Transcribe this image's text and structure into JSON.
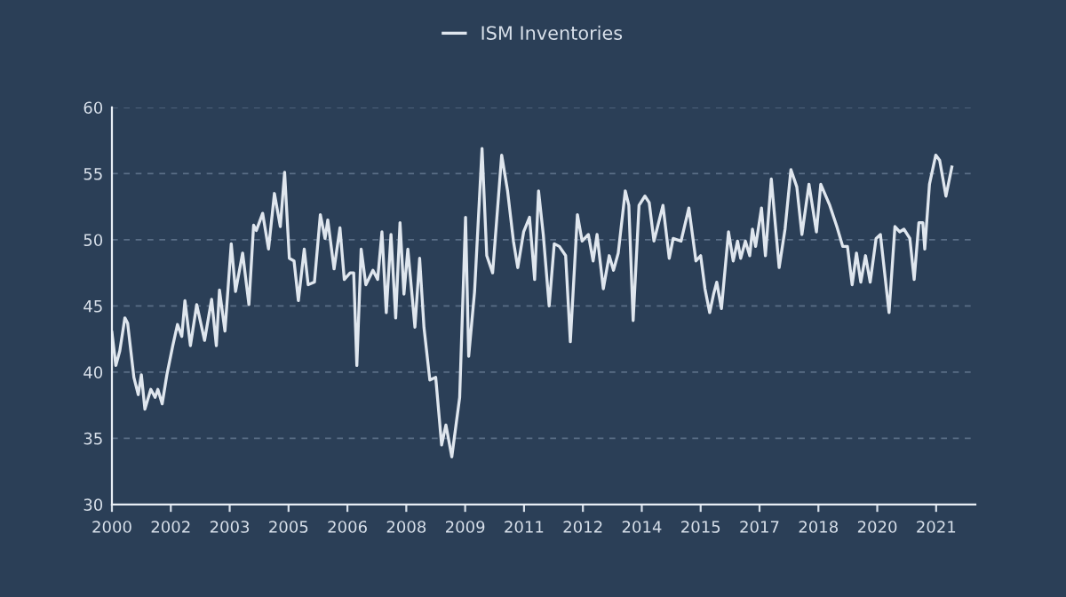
{
  "chart_data": {
    "type": "line",
    "x": [
      2000.0,
      2000.1,
      2000.2,
      2000.33,
      2000.4,
      2000.56,
      2000.67,
      2000.75,
      2000.84,
      2000.99,
      2001.1,
      2001.17,
      2001.28,
      2001.4,
      2001.55,
      2001.67,
      2001.78,
      2001.86,
      2002.0,
      2002.16,
      2002.36,
      2002.54,
      2002.66,
      2002.74,
      2002.88,
      2003.04,
      2003.15,
      2003.33,
      2003.49,
      2003.61,
      2003.68,
      2003.84,
      2003.99,
      2004.14,
      2004.29,
      2004.4,
      2004.52,
      2004.64,
      2004.75,
      2004.9,
      2005.0,
      2005.16,
      2005.31,
      2005.43,
      2005.5,
      2005.66,
      2005.81,
      2005.92,
      2006.07,
      2006.16,
      2006.24,
      2006.35,
      2006.47,
      2006.65,
      2006.77,
      2006.88,
      2006.99,
      2007.11,
      2007.23,
      2007.34,
      2007.44,
      2007.54,
      2007.72,
      2007.84,
      2007.95,
      2008.1,
      2008.25,
      2008.4,
      2008.51,
      2008.66,
      2008.86,
      2009.01,
      2009.09,
      2009.24,
      2009.43,
      2009.55,
      2009.7,
      2009.93,
      2010.08,
      2010.23,
      2010.34,
      2010.49,
      2010.64,
      2010.77,
      2010.87,
      2010.99,
      2011.14,
      2011.27,
      2011.4,
      2011.56,
      2011.68,
      2011.86,
      2011.98,
      2012.14,
      2012.26,
      2012.36,
      2012.52,
      2012.67,
      2012.78,
      2012.9,
      2013.08,
      2013.17,
      2013.28,
      2013.43,
      2013.58,
      2013.69,
      2013.81,
      2014.04,
      2014.2,
      2014.3,
      2014.5,
      2014.7,
      2014.88,
      2015.0,
      2015.11,
      2015.23,
      2015.33,
      2015.41,
      2015.53,
      2015.71,
      2015.83,
      2015.94,
      2016.02,
      2016.14,
      2016.25,
      2016.32,
      2016.4,
      2016.55,
      2016.65,
      2016.8,
      2017.0,
      2017.15,
      2017.3,
      2017.45,
      2017.58,
      2017.76,
      2017.95,
      2018.06,
      2018.29,
      2018.47,
      2018.62,
      2018.74,
      2018.86,
      2018.97,
      2019.08,
      2019.2,
      2019.32,
      2019.47,
      2019.58,
      2019.8,
      2019.95,
      2020.07,
      2020.18,
      2020.33,
      2020.44,
      2020.56,
      2020.66,
      2020.71,
      2020.83,
      2020.99,
      2021.09,
      2021.25,
      2021.4
    ],
    "series": [
      {
        "name": "ISM Inventories",
        "color": "#dfe6ee",
        "values": [
          43.0,
          40.5,
          41.6,
          44.1,
          43.7,
          39.6,
          38.3,
          39.8,
          37.2,
          38.7,
          38.1,
          38.7,
          37.6,
          39.8,
          42.0,
          43.6,
          42.7,
          45.4,
          42.0,
          45.1,
          42.4,
          45.5,
          42.0,
          46.2,
          43.1,
          49.7,
          46.1,
          49.0,
          45.1,
          51.1,
          50.7,
          52.0,
          49.3,
          53.5,
          51.0,
          55.1,
          48.6,
          48.4,
          45.4,
          49.3,
          46.6,
          46.8,
          51.9,
          50.1,
          51.5,
          47.8,
          50.9,
          47.0,
          47.5,
          47.5,
          40.5,
          49.3,
          46.6,
          47.7,
          47.0,
          50.6,
          44.5,
          50.4,
          44.1,
          51.3,
          45.9,
          49.3,
          43.4,
          48.6,
          43.4,
          39.4,
          39.6,
          34.5,
          36.0,
          33.6,
          38.1,
          51.7,
          41.2,
          46.1,
          56.9,
          48.8,
          47.5,
          56.4,
          53.7,
          49.9,
          47.9,
          50.6,
          51.7,
          47.0,
          53.7,
          50.4,
          45.0,
          49.7,
          49.5,
          48.8,
          42.3,
          51.9,
          49.9,
          50.4,
          48.4,
          50.4,
          46.3,
          48.8,
          47.7,
          49.0,
          53.7,
          52.6,
          43.9,
          52.6,
          53.3,
          52.8,
          49.9,
          52.6,
          48.6,
          50.1,
          49.9,
          52.4,
          48.4,
          48.8,
          46.3,
          44.5,
          45.9,
          46.8,
          44.8,
          50.6,
          48.4,
          49.9,
          48.6,
          49.9,
          48.8,
          50.8,
          49.5,
          52.4,
          48.8,
          54.6,
          47.9,
          50.8,
          55.3,
          54.0,
          50.4,
          54.2,
          50.6,
          54.2,
          52.6,
          51.0,
          49.5,
          49.5,
          46.6,
          49.0,
          46.8,
          48.8,
          46.8,
          50.1,
          50.4,
          44.5,
          51.0,
          50.6,
          50.8,
          50.1,
          47.0,
          51.3,
          51.3,
          49.3,
          54.2,
          56.4,
          56.0,
          53.3,
          55.5
        ]
      }
    ],
    "xlim": [
      2000,
      2022.0
    ],
    "xticks": [
      2000,
      {
        "value": 2001.5,
        "label": "2002"
      },
      2003,
      {
        "value": 2004.5,
        "label": "2005"
      },
      2006,
      {
        "value": 2007.5,
        "label": "2008"
      },
      2009,
      {
        "value": 2010.5,
        "label": "2011"
      },
      2012,
      {
        "value": 2013.5,
        "label": "2014"
      },
      2015,
      {
        "value": 2016.5,
        "label": "2017"
      },
      2018,
      {
        "value": 2019.5,
        "label": "2020"
      },
      2021
    ],
    "ylim": [
      30,
      60
    ],
    "yticks": [
      30,
      35,
      40,
      45,
      50,
      55,
      60
    ],
    "grid": "y",
    "legend": "top",
    "marker": "none",
    "line_style": "solid"
  }
}
